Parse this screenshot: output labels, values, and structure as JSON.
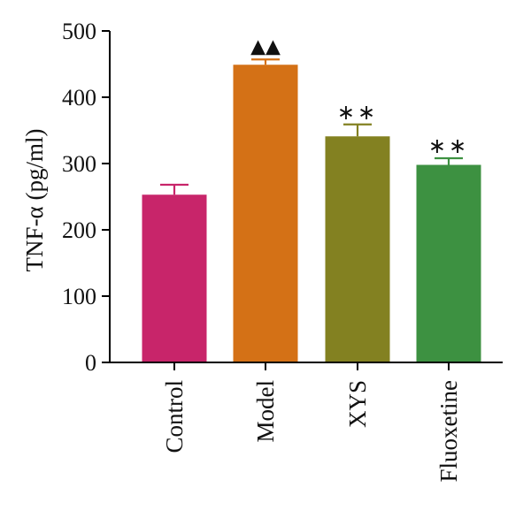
{
  "chart_data": {
    "type": "bar",
    "categories": [
      "Control",
      "Model",
      "XYS",
      "Fluoxetine"
    ],
    "values": [
      253,
      449,
      341,
      298
    ],
    "errors": [
      15,
      8,
      18,
      10
    ],
    "colors": [
      "#c8256a",
      "#d47116",
      "#838121",
      "#3d9141"
    ],
    "annotations": [
      "",
      "▲▲",
      "∗∗",
      "∗∗"
    ],
    "ylabel": "TNF-α (pg/ml)",
    "ylim": [
      0,
      500
    ],
    "yticks": [
      0,
      100,
      200,
      300,
      400,
      500
    ],
    "grid": false,
    "legend": "none"
  }
}
